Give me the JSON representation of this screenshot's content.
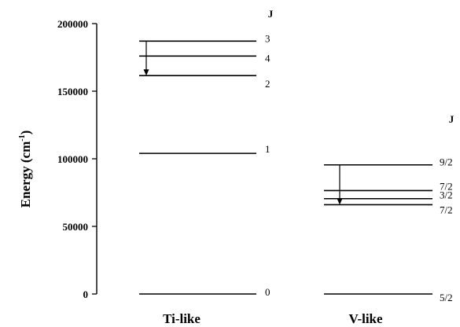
{
  "chart_data": {
    "type": "energy-level diagram",
    "ylabel": "Energy (cm",
    "ylabel_superscript": "-1",
    "ylabel_close": ")",
    "ylim": [
      0,
      200000
    ],
    "yticks": [
      0,
      50000,
      100000,
      150000,
      200000
    ],
    "ytick_labels": [
      "0",
      "50000",
      "100000",
      "150000",
      "200000"
    ],
    "column_header": "J",
    "groups": [
      {
        "name": "Ti-like",
        "levels": [
          {
            "energy": 187000,
            "label": "3"
          },
          {
            "energy": 176000,
            "label": "4"
          },
          {
            "energy": 161500,
            "label": "2"
          },
          {
            "energy": 104000,
            "label": "1"
          },
          {
            "energy": 0,
            "label": "0"
          }
        ],
        "transition": {
          "from": 187000,
          "to": 161500
        }
      },
      {
        "name": "V-like",
        "levels": [
          {
            "energy": 95500,
            "label": "9/2"
          },
          {
            "energy": 76500,
            "label": "7/2"
          },
          {
            "energy": 70500,
            "label": "3/2"
          },
          {
            "energy": 66000,
            "label": "7/2"
          },
          {
            "energy": 0,
            "label": "5/2"
          }
        ],
        "transition": {
          "from": 95500,
          "to": 66000
        }
      }
    ]
  }
}
